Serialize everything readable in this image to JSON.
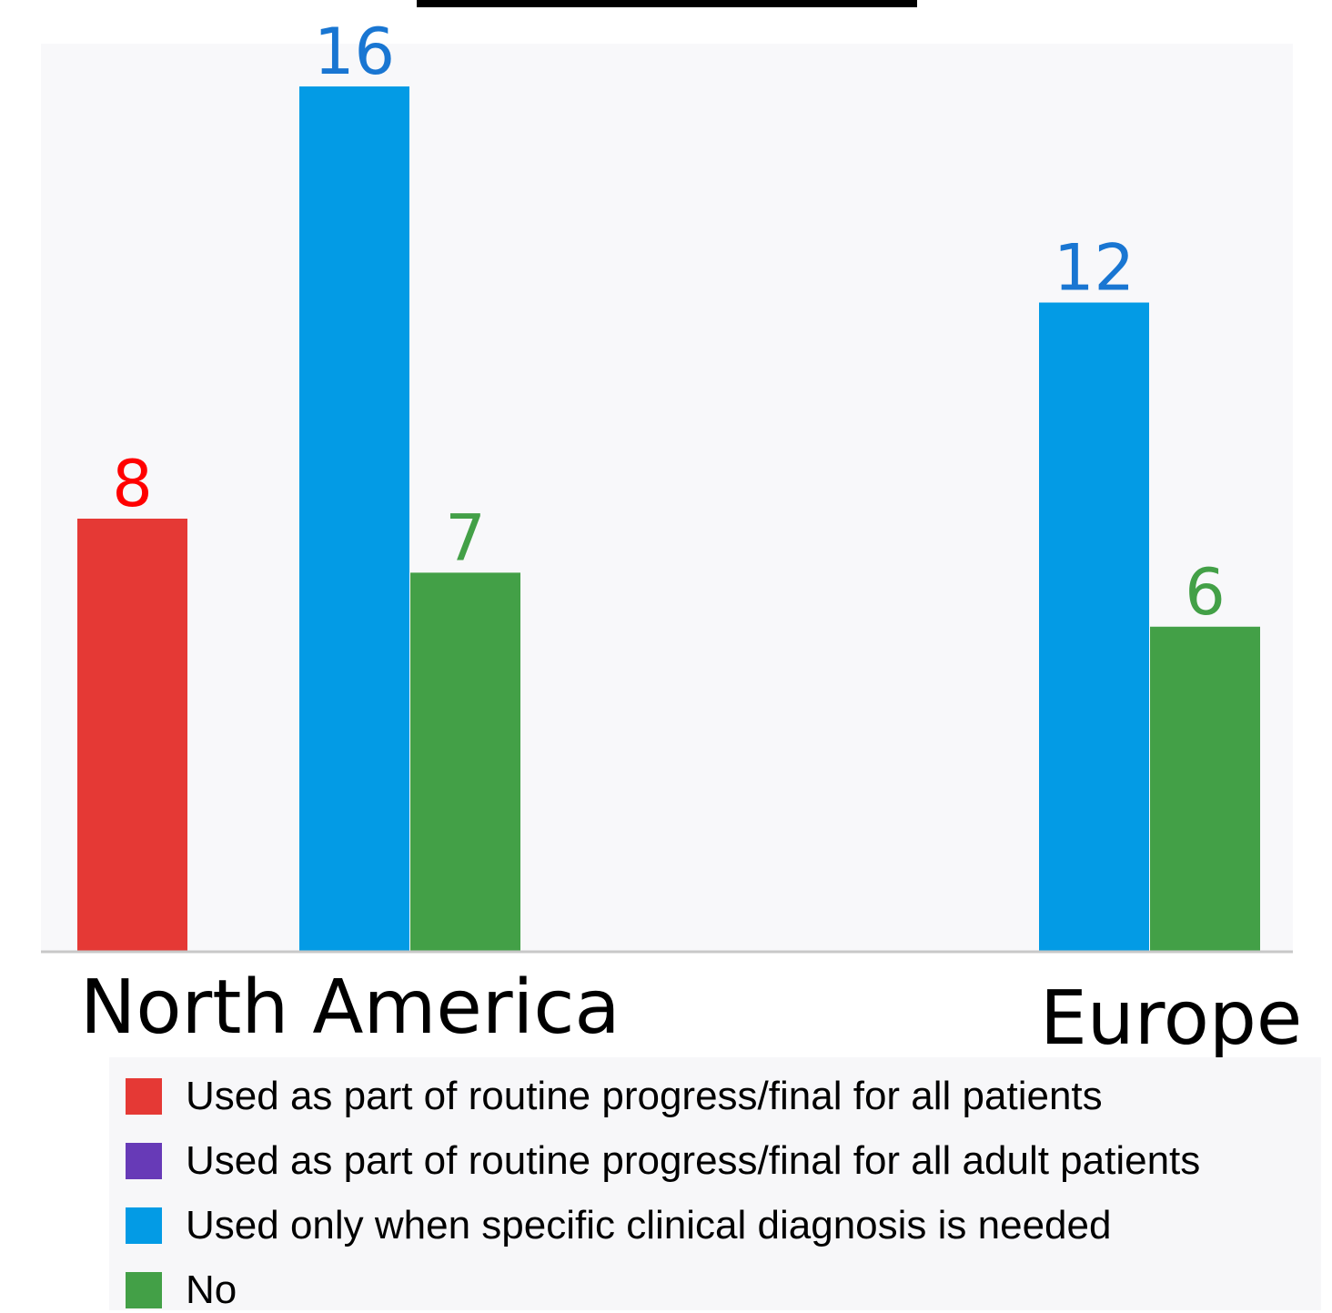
{
  "chart_data": {
    "type": "bar",
    "categories": [
      "North America",
      "Europe"
    ],
    "series": [
      {
        "name": "Used as part of routine progress/final for all patients",
        "color": "#e53935",
        "label_color": "#ff0000",
        "values": [
          8,
          0
        ]
      },
      {
        "name": "Used as part of routine progress/final for all adult patients",
        "color": "#673ab7",
        "label_color": "#673ab7",
        "values": [
          0,
          0
        ]
      },
      {
        "name": "Used only when specific clinical diagnosis is needed",
        "color": "#039be5",
        "label_color": "#1976d2",
        "values": [
          16,
          12
        ]
      },
      {
        "name": "No",
        "color": "#43a047",
        "label_color": "#43a047",
        "values": [
          7,
          6
        ]
      }
    ],
    "ylim": [
      0,
      17
    ],
    "legend_position": "bottom",
    "grid": false,
    "background": "#f8f8fa"
  }
}
